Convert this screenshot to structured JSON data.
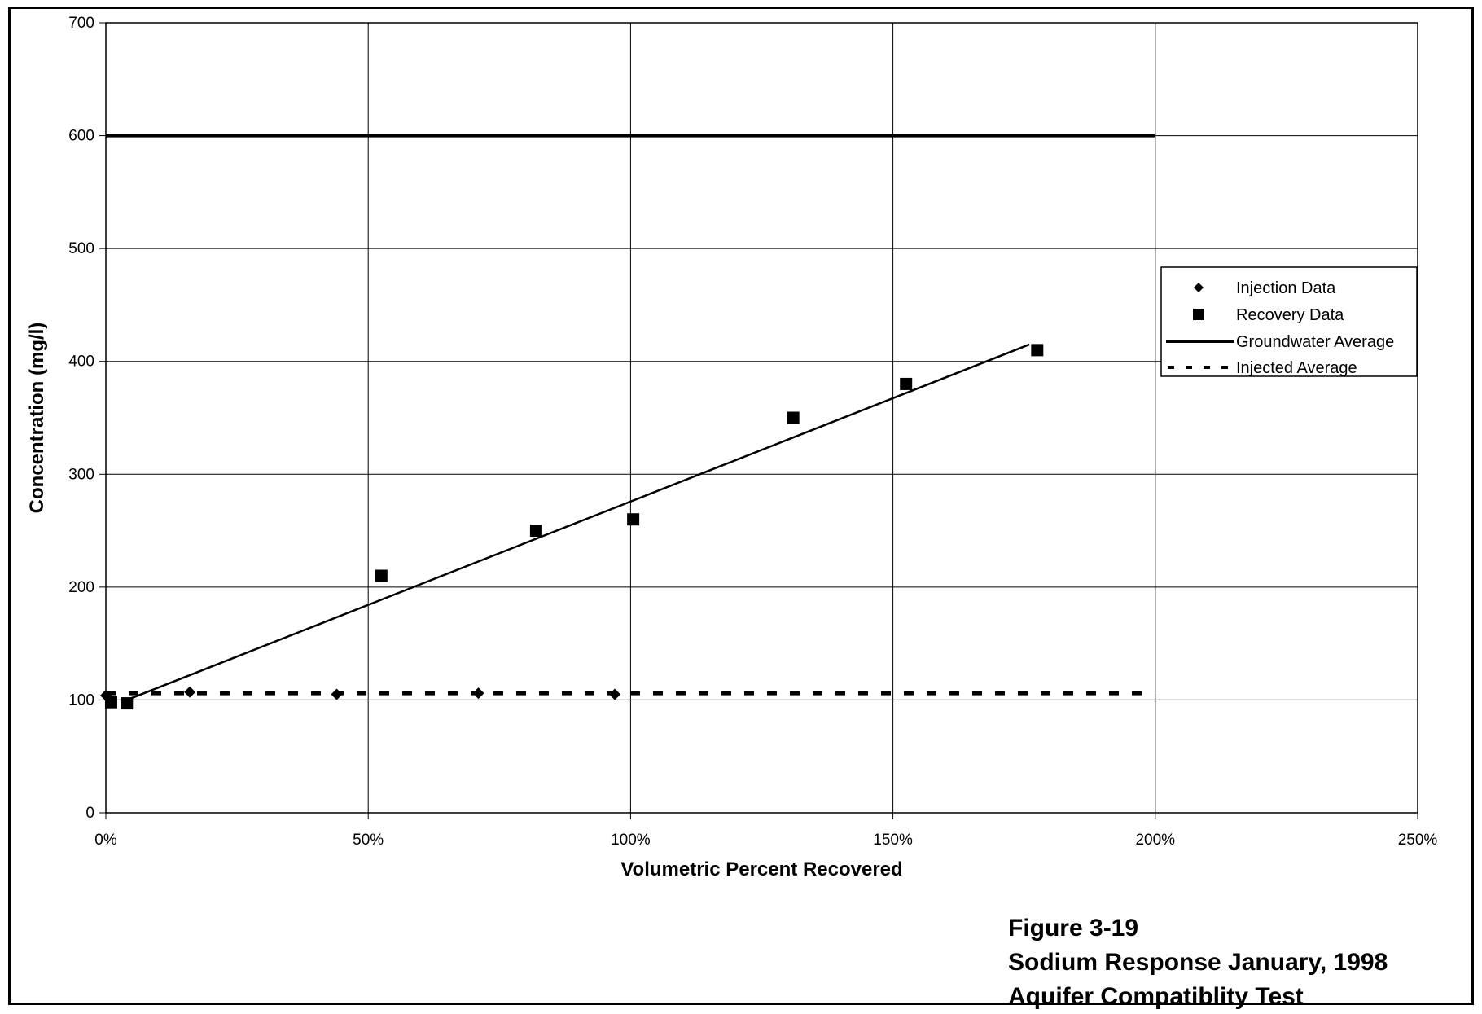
{
  "chart_data": {
    "type": "scatter",
    "xlabel": "Volumetric Percent Recovered",
    "ylabel": "Concentration (mg/l)",
    "xlim": [
      0,
      2.5
    ],
    "ylim": [
      0,
      700
    ],
    "x_ticks": [
      "0%",
      "50%",
      "100%",
      "150%",
      "200%",
      "250%"
    ],
    "y_ticks": [
      "0",
      "100",
      "200",
      "300",
      "400",
      "500",
      "600",
      "700"
    ],
    "grid": true,
    "legend_position": "right",
    "series": [
      {
        "name": "Injection Data",
        "marker": "diamond",
        "x": [
          0.0,
          0.16,
          0.44,
          0.71,
          0.97
        ],
        "y": [
          104,
          107,
          105,
          106,
          105
        ]
      },
      {
        "name": "Recovery Data",
        "marker": "square",
        "x": [
          0.01,
          0.04,
          0.525,
          0.82,
          1.005,
          1.31,
          1.525,
          1.775
        ],
        "y": [
          98,
          97,
          210,
          250,
          260,
          350,
          380,
          410
        ]
      },
      {
        "name": "Groundwater Average",
        "style": "solid-thick",
        "x": [
          0,
          2.0
        ],
        "y": [
          600,
          600
        ]
      },
      {
        "name": "Injected Average",
        "style": "dashed",
        "x": [
          0,
          2.0
        ],
        "y": [
          106,
          106
        ]
      }
    ],
    "trendline": {
      "x": [
        0.04,
        1.76
      ],
      "y": [
        100,
        415
      ]
    }
  },
  "caption": {
    "line1": "Figure 3-19",
    "line2": "Sodium Response January, 1998",
    "line3": "Aquifer Compatiblity Test"
  },
  "colors": {
    "ink": "#000000",
    "background": "#ffffff"
  }
}
